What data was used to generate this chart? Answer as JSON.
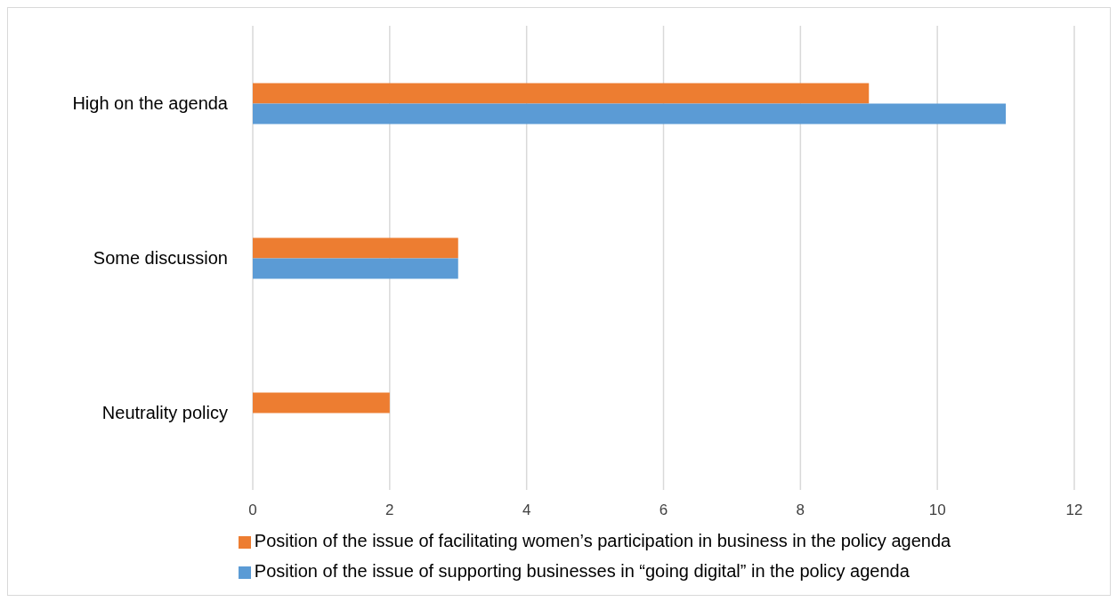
{
  "chart_data": {
    "type": "bar",
    "orientation": "horizontal",
    "categories": [
      "High on the agenda",
      "Some discussion",
      "Neutrality policy"
    ],
    "series": [
      {
        "name": "Position of the issue of facilitating women’s participation in business in the policy agenda",
        "color": "#ed7d31",
        "values": [
          9,
          3,
          2
        ]
      },
      {
        "name": "Position of the issue of supporting businesses in “going digital” in the policy agenda",
        "color": "#5b9bd5",
        "values": [
          11,
          3,
          0
        ]
      }
    ],
    "xlim": [
      0,
      12
    ],
    "xticks": [
      0,
      2,
      4,
      6,
      8,
      10,
      12
    ],
    "grid": "x",
    "legend": "bottom"
  }
}
